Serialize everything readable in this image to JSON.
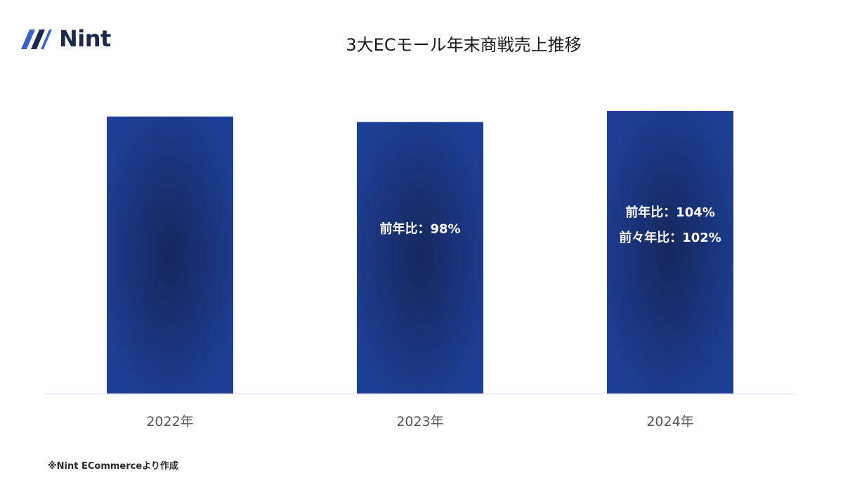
{
  "logo": {
    "text": "Nint"
  },
  "title": "3大ECモール年末商戦売上推移",
  "footnote": "※Nint ECommerceより作成",
  "colors": {
    "bar": "#1e3f96",
    "bar_dark": "#15275c",
    "axis": "#e3e6ec",
    "label": "#555555"
  },
  "chart_data": {
    "type": "bar",
    "title": "3大ECモール年末商戦売上推移",
    "categories": [
      "2022年",
      "2023年",
      "2024年"
    ],
    "values": [
      100,
      98,
      102
    ],
    "ylim": [
      0,
      104
    ],
    "grid": false,
    "xlabel": "",
    "ylabel": "",
    "annotations": [
      [],
      [
        "前年比：98%"
      ],
      [
        "前年比：104%",
        "前々年比：102%"
      ]
    ]
  }
}
